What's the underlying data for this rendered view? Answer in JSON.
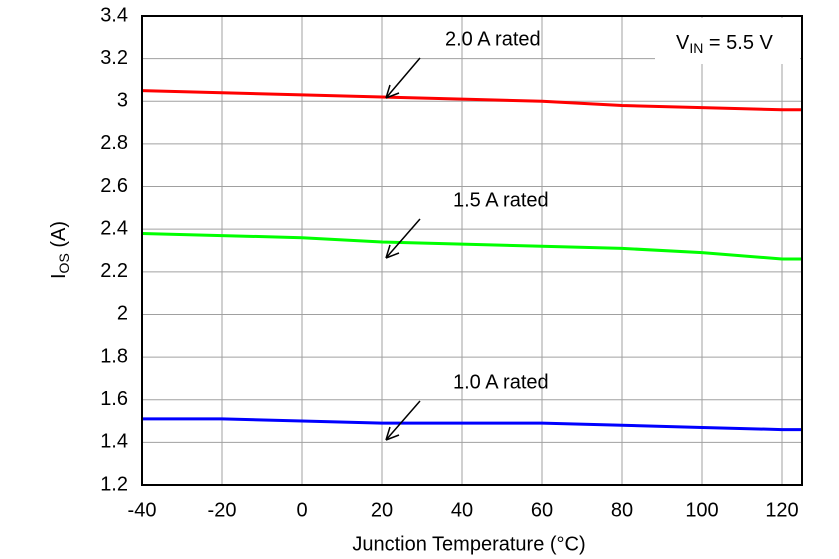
{
  "chart_data": {
    "type": "line",
    "x": [
      -40,
      -20,
      0,
      20,
      40,
      60,
      80,
      100,
      120,
      125
    ],
    "series": [
      {
        "name": "2.0 A rated",
        "color": "#ff0000",
        "values": [
          3.05,
          3.04,
          3.03,
          3.02,
          3.01,
          3.0,
          2.98,
          2.97,
          2.96,
          2.96
        ]
      },
      {
        "name": "1.5 A rated",
        "color": "#00ff00",
        "values": [
          2.38,
          2.37,
          2.36,
          2.34,
          2.33,
          2.32,
          2.31,
          2.29,
          2.26,
          2.26
        ]
      },
      {
        "name": "1.0 A rated",
        "color": "#0000ff",
        "values": [
          1.51,
          1.51,
          1.5,
          1.49,
          1.49,
          1.49,
          1.48,
          1.47,
          1.46,
          1.46
        ]
      }
    ],
    "xlim": [
      -40,
      125
    ],
    "xticks": [
      -40,
      -20,
      0,
      20,
      40,
      60,
      80,
      100,
      120
    ],
    "ylim": [
      1.2,
      3.4
    ],
    "yticks": [
      1.2,
      1.4,
      1.6,
      1.8,
      2,
      2.2,
      2.4,
      2.6,
      2.8,
      3,
      3.2,
      3.4
    ],
    "grid": true,
    "xlabel": "Junction Temperature (°C)",
    "ylabel": {
      "main": "I",
      "sub": "OS",
      "rest": " (A)"
    },
    "condition": {
      "main": "V",
      "sub": "IN",
      "rest": " = 5.5 V"
    }
  }
}
